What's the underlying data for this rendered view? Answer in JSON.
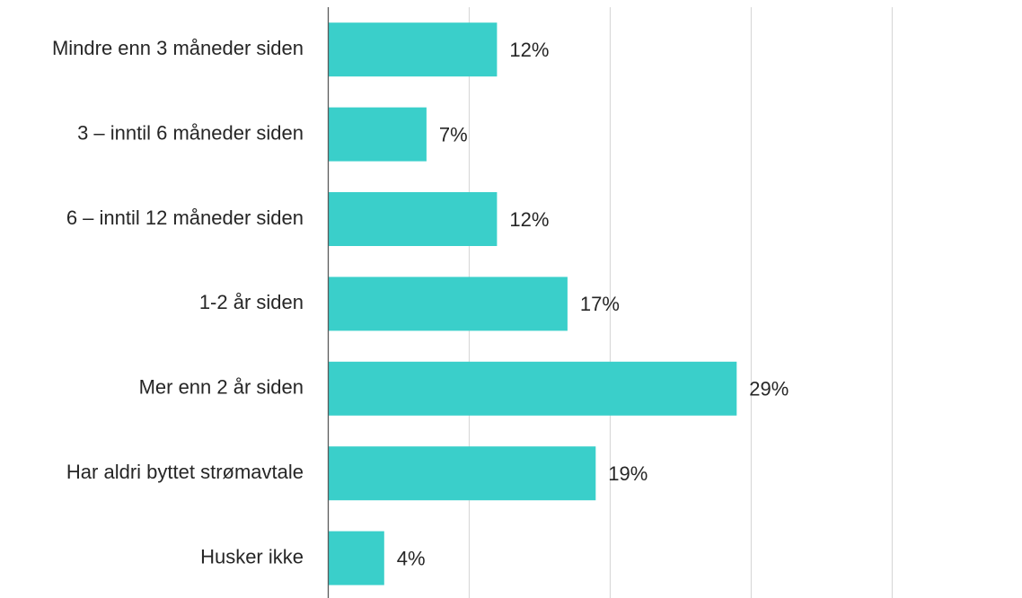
{
  "chart_data": {
    "type": "bar",
    "orientation": "horizontal",
    "categories": [
      "Mindre enn 3 måneder siden",
      "3 – inntil 6 måneder siden",
      "6 – inntil 12 måneder siden",
      "1-2 år siden",
      "Mer enn 2 år siden",
      "Har aldri byttet strømavtale",
      "Husker ikke"
    ],
    "values": [
      12,
      7,
      12,
      17,
      29,
      19,
      4
    ],
    "value_labels": [
      "12%",
      "7%",
      "12%",
      "17%",
      "29%",
      "19%",
      "4%"
    ],
    "xlim": [
      0,
      50
    ],
    "gridlines": [
      10,
      20,
      30,
      40
    ],
    "grid": true,
    "legend": "none",
    "title": "",
    "xlabel": "",
    "ylabel": "",
    "bar_color": "#3ACFCA",
    "gridline_color": "#D9D9D9",
    "axis_color": "#595959",
    "text_color": "#262626"
  }
}
